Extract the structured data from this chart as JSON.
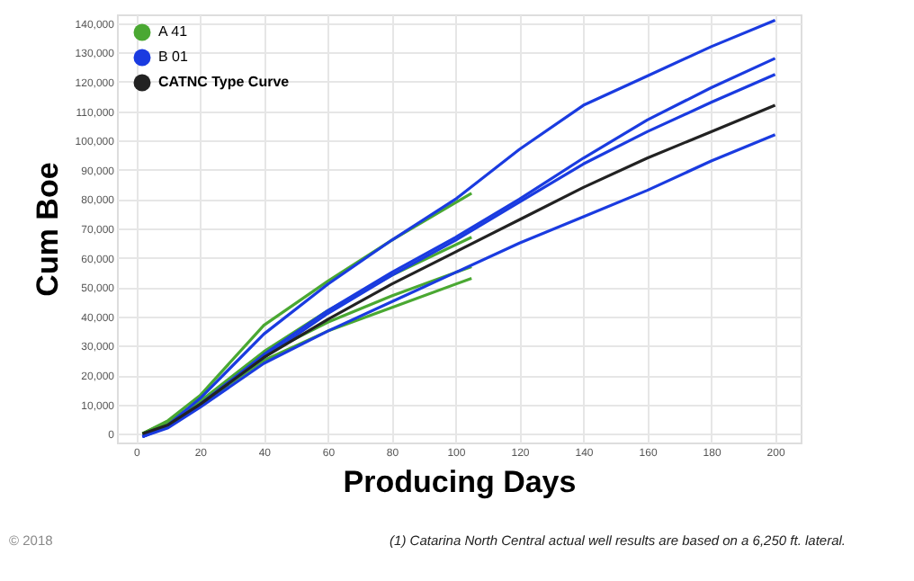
{
  "chart_data": {
    "type": "line",
    "xlabel": "Producing Days",
    "ylabel": "Cum Boe",
    "xlim": [
      -6,
      208
    ],
    "ylim": [
      -3000,
      143000
    ],
    "xticks": [
      0,
      20,
      40,
      60,
      80,
      100,
      120,
      140,
      160,
      180,
      200
    ],
    "yticks": [
      {
        "value": 0,
        "label": "0"
      },
      {
        "value": 10000,
        "label": "10,000"
      },
      {
        "value": 20000,
        "label": "20,000"
      },
      {
        "value": 30000,
        "label": "30,000"
      },
      {
        "value": 40000,
        "label": "40,000"
      },
      {
        "value": 50000,
        "label": "50,000"
      },
      {
        "value": 60000,
        "label": "60,000"
      },
      {
        "value": 70000,
        "label": "70,000"
      },
      {
        "value": 80000,
        "label": "80,000"
      },
      {
        "value": 90000,
        "label": "90,000"
      },
      {
        "value": 100000,
        "label": "100,000"
      },
      {
        "value": 110000,
        "label": "110,000"
      },
      {
        "value": 120000,
        "label": "120,000"
      },
      {
        "value": 130000,
        "label": "130,000"
      },
      {
        "value": 140000,
        "label": "140,000"
      }
    ],
    "grid": true,
    "legend": "top left",
    "marker": "none",
    "line_style": "solid",
    "series": [
      {
        "name": "A 41",
        "color": "#4aa832",
        "x": [
          2,
          10,
          20,
          40,
          60,
          80,
          105
        ],
        "values": [
          0,
          4500,
          13000,
          37000,
          52000,
          66000,
          82000
        ]
      },
      {
        "color": "#4aa832",
        "x": [
          2,
          10,
          20,
          40,
          60,
          80,
          105
        ],
        "values": [
          0,
          4000,
          11000,
          28000,
          42000,
          54000,
          67000
        ]
      },
      {
        "color": "#4aa832",
        "x": [
          2,
          10,
          20,
          40,
          60,
          80,
          105
        ],
        "values": [
          0,
          4000,
          11000,
          27000,
          38000,
          47000,
          57000
        ]
      },
      {
        "color": "#4aa832",
        "x": [
          2,
          10,
          20,
          40,
          60,
          80,
          105
        ],
        "values": [
          0,
          4000,
          10000,
          25000,
          35000,
          43000,
          53000
        ]
      },
      {
        "name": "B 01",
        "color": "#1a3be0",
        "x": [
          2,
          10,
          20,
          40,
          60,
          80,
          100,
          120,
          140,
          160,
          180,
          200
        ],
        "values": [
          -1000,
          3000,
          12000,
          34000,
          51000,
          66000,
          80000,
          97000,
          112000,
          122000,
          132000,
          141000
        ]
      },
      {
        "color": "#1a3be0",
        "x": [
          2,
          10,
          20,
          40,
          60,
          80,
          100,
          120,
          140,
          160,
          180,
          200
        ],
        "values": [
          -1000,
          2500,
          10000,
          27000,
          42000,
          55000,
          67000,
          80000,
          94000,
          107000,
          118000,
          128000
        ]
      },
      {
        "color": "#1a3be0",
        "x": [
          2,
          10,
          20,
          40,
          60,
          80,
          100,
          120,
          140,
          160,
          180,
          200
        ],
        "values": [
          -1000,
          2500,
          10000,
          26000,
          41000,
          54000,
          66000,
          79000,
          92000,
          103000,
          113000,
          122500
        ]
      },
      {
        "color": "#1a3be0",
        "x": [
          2,
          10,
          20,
          40,
          60,
          80,
          100,
          120,
          140,
          160,
          180,
          200
        ],
        "values": [
          -1000,
          2000,
          9000,
          24000,
          35000,
          45000,
          55000,
          65000,
          74000,
          83000,
          93000,
          102000
        ]
      },
      {
        "name": "CATNC Type Curve",
        "color": "#222222",
        "x": [
          2,
          10,
          20,
          40,
          60,
          80,
          100,
          120,
          140,
          160,
          180,
          200
        ],
        "values": [
          0,
          3000,
          10000,
          26000,
          39000,
          51000,
          62000,
          73000,
          84000,
          94000,
          103000,
          112000
        ]
      }
    ],
    "annotations": [
      "© 2018",
      "(1) Catarina North Central actual well results are based on a 6,250 ft. lateral."
    ]
  }
}
